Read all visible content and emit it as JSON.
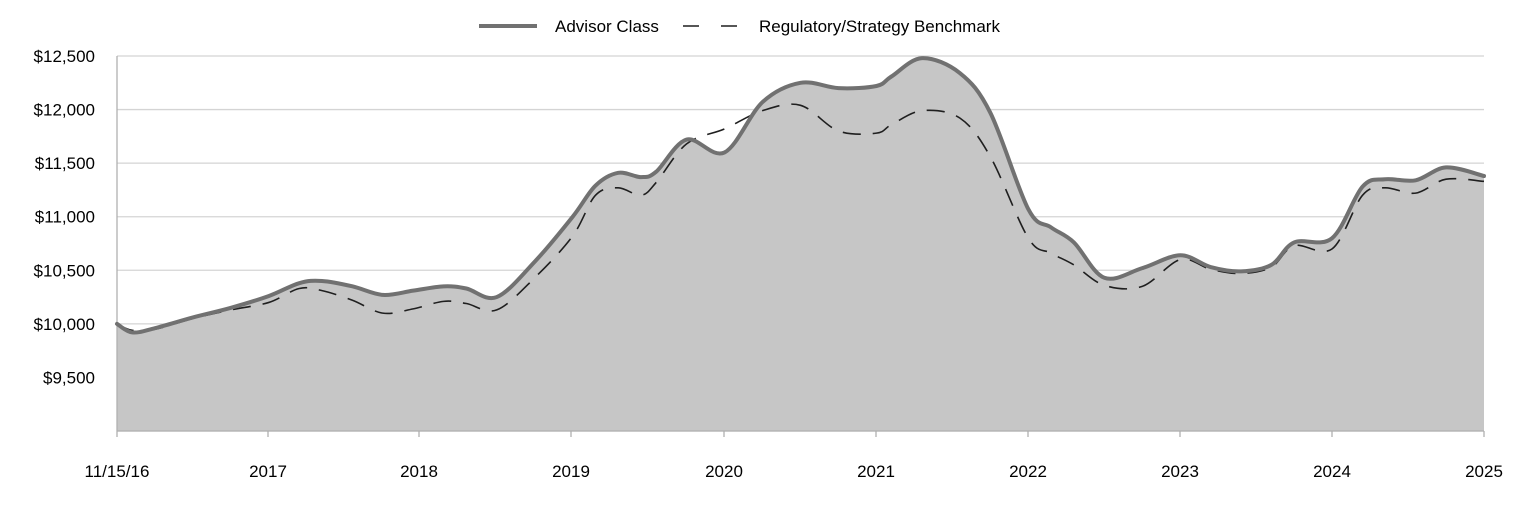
{
  "chart_data": {
    "type": "area",
    "title": "",
    "xlabel": "",
    "ylabel": "",
    "x_tick_labels": [
      "11/15/16",
      "2017",
      "2018",
      "2019",
      "2020",
      "2021",
      "2022",
      "2023",
      "2024",
      "2025"
    ],
    "y_tick_labels": [
      "$9,500",
      "$10,000",
      "$10,500",
      "$11,000",
      "$11,500",
      "$12,000",
      "$12,500"
    ],
    "y_ticks": [
      9500,
      10000,
      10500,
      11000,
      11500,
      12000,
      12500
    ],
    "ylim": [
      9000,
      12500
    ],
    "xlim": [
      2016.0,
      2025.0
    ],
    "grid": true,
    "legend_position": "top-center",
    "series": [
      {
        "name": "Advisor Class",
        "style": "solid-filled",
        "x": [
          2016.0,
          2016.1,
          2016.25,
          2016.5,
          2016.75,
          2017.0,
          2017.2,
          2017.35,
          2017.55,
          2017.75,
          2017.95,
          2018.15,
          2018.3,
          2018.5,
          2018.75,
          2019.0,
          2019.15,
          2019.3,
          2019.45,
          2019.55,
          2019.75,
          2020.0,
          2020.25,
          2020.5,
          2020.75,
          2021.0,
          2021.1,
          2021.3,
          2021.55,
          2021.75,
          2022.0,
          2022.15,
          2022.3,
          2022.5,
          2022.75,
          2023.0,
          2023.2,
          2023.4,
          2023.6,
          2023.75,
          2024.0,
          2024.2,
          2024.35,
          2024.55,
          2024.75,
          2025.0
        ],
        "values": [
          10000,
          9920,
          9960,
          10060,
          10150,
          10260,
          10380,
          10400,
          10350,
          10270,
          10310,
          10350,
          10330,
          10250,
          10580,
          11000,
          11290,
          11410,
          11370,
          11420,
          11720,
          11600,
          12070,
          12250,
          12200,
          12220,
          12310,
          12480,
          12340,
          11970,
          11070,
          10900,
          10760,
          10430,
          10520,
          10640,
          10530,
          10490,
          10550,
          10760,
          10800,
          11280,
          11350,
          11340,
          11460,
          11380
        ]
      },
      {
        "name": "Regulatory/Strategy Benchmark",
        "style": "dashed",
        "x": [
          2016.0,
          2016.1,
          2016.25,
          2016.5,
          2016.75,
          2017.0,
          2017.2,
          2017.35,
          2017.55,
          2017.75,
          2017.95,
          2018.15,
          2018.3,
          2018.5,
          2018.75,
          2019.0,
          2019.15,
          2019.3,
          2019.45,
          2019.55,
          2019.75,
          2020.0,
          2020.25,
          2020.5,
          2020.75,
          2021.0,
          2021.1,
          2021.3,
          2021.55,
          2021.75,
          2022.0,
          2022.15,
          2022.3,
          2022.5,
          2022.75,
          2023.0,
          2023.2,
          2023.4,
          2023.6,
          2023.75,
          2024.0,
          2024.2,
          2024.35,
          2024.55,
          2024.75,
          2025.0
        ],
        "values": [
          10000,
          9940,
          9950,
          10050,
          10130,
          10200,
          10330,
          10310,
          10220,
          10100,
          10140,
          10210,
          10190,
          10130,
          10430,
          10820,
          11200,
          11270,
          11200,
          11320,
          11680,
          11820,
          11990,
          12040,
          11800,
          11780,
          11860,
          11990,
          11920,
          11560,
          10800,
          10660,
          10550,
          10360,
          10350,
          10600,
          10510,
          10470,
          10530,
          10730,
          10700,
          11200,
          11270,
          11220,
          11350,
          11330
        ]
      }
    ],
    "colors": {
      "fill": "#c6c6c6",
      "advisor_line": "#717171",
      "benchmark_line": "#1f1f1f",
      "grid": "#d4d4d4",
      "axis": "#b0b0b0"
    }
  }
}
